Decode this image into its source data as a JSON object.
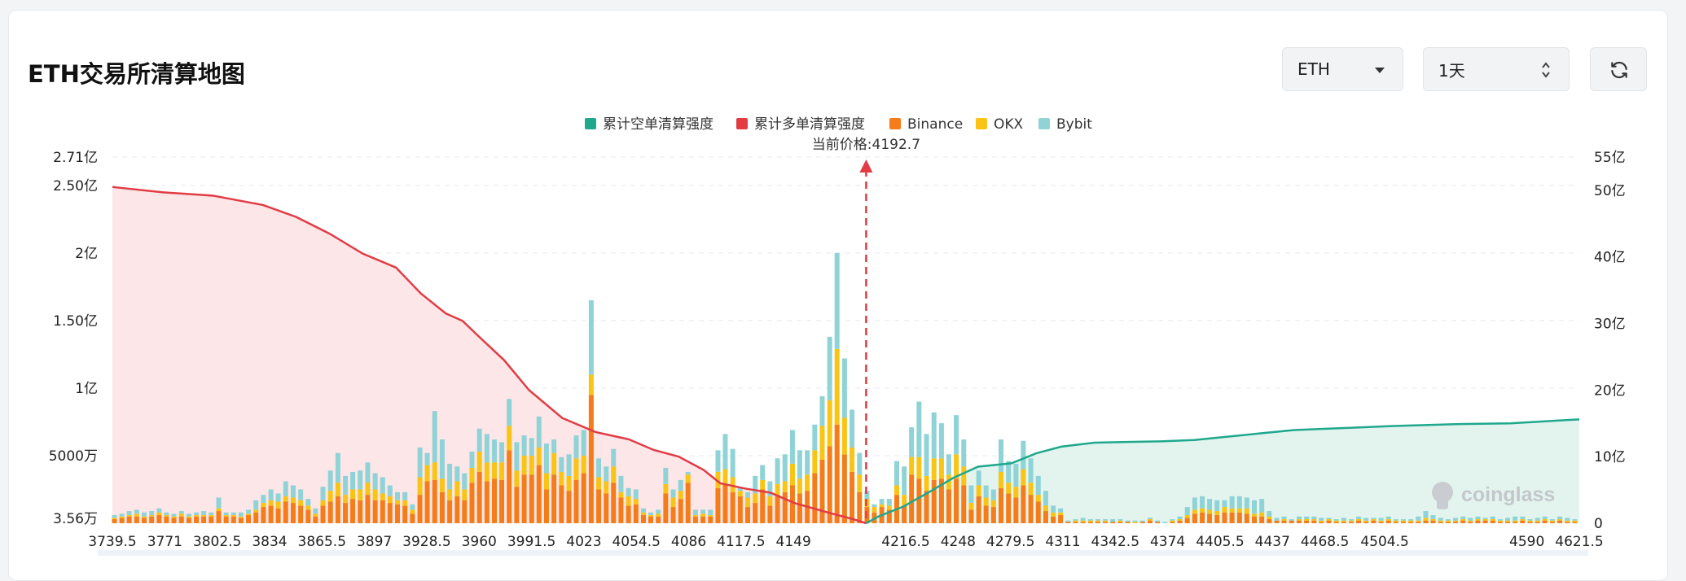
{
  "title": "ETH交易所清算地图",
  "controls": {
    "coin": "ETH",
    "period": "1天",
    "refresh_icon": "refresh-icon"
  },
  "watermark": "coinglass",
  "chart_data": {
    "type": "bar",
    "legend": [
      {
        "name": "累计空单清算强度",
        "color": "#1fa88c"
      },
      {
        "name": "累计多单清算强度",
        "color": "#e23b44"
      },
      {
        "name": "Binance",
        "color": "#f57c18"
      },
      {
        "name": "OKX",
        "color": "#f9c414"
      },
      {
        "name": "Bybit",
        "color": "#8fd3d6"
      }
    ],
    "legend_position": "top-center",
    "price_annotation": {
      "label": "当前价格:4192.7",
      "value": 4192.7
    },
    "x_tick_labels": [
      "3739.5",
      "3771",
      "3802.5",
      "3834",
      "3865.5",
      "3897",
      "3928.5",
      "3960",
      "3991.5",
      "4023",
      "4054.5",
      "4086",
      "4117.5",
      "4149",
      "4216.5",
      "4248",
      "4279.5",
      "4311",
      "4342.5",
      "4374",
      "4405.5",
      "4437",
      "4468.5",
      "4504.5",
      "4590",
      "4621.5"
    ],
    "x_range": [
      3739.5,
      4621.5
    ],
    "left_axis": {
      "tick_labels": [
        "3.56万",
        "5000万",
        "1亿",
        "1.50亿",
        "2亿",
        "2.50亿",
        "2.71亿"
      ],
      "unit_values": [
        0.0356,
        0.5,
        1,
        1.5,
        2,
        2.5,
        2.71
      ],
      "unit": "亿"
    },
    "right_axis": {
      "tick_labels": [
        "0",
        "10亿",
        "20亿",
        "30亿",
        "40亿",
        "50亿",
        "55亿"
      ],
      "unit_values": [
        0,
        10,
        20,
        30,
        40,
        50,
        55
      ],
      "unit": "亿"
    },
    "grid": true,
    "bars": [
      [
        3740.7,
        0.03,
        0.01,
        0.02
      ],
      [
        3745.2,
        0.04,
        0.01,
        0.02
      ],
      [
        3749.6,
        0.05,
        0.01,
        0.03
      ],
      [
        3754.1,
        0.05,
        0.02,
        0.03
      ],
      [
        3758.6,
        0.04,
        0.01,
        0.03
      ],
      [
        3763.1,
        0.05,
        0.01,
        0.03
      ],
      [
        3767.6,
        0.06,
        0.02,
        0.03
      ],
      [
        3772.0,
        0.05,
        0.01,
        0.02
      ],
      [
        3776.5,
        0.04,
        0.01,
        0.02
      ],
      [
        3781.0,
        0.05,
        0.02,
        0.02
      ],
      [
        3785.5,
        0.04,
        0.01,
        0.02
      ],
      [
        3790.0,
        0.05,
        0.01,
        0.02
      ],
      [
        3794.4,
        0.05,
        0.01,
        0.03
      ],
      [
        3798.9,
        0.05,
        0.01,
        0.02
      ],
      [
        3803.4,
        0.09,
        0.02,
        0.08
      ],
      [
        3807.9,
        0.05,
        0.01,
        0.02
      ],
      [
        3812.4,
        0.05,
        0.01,
        0.02
      ],
      [
        3816.8,
        0.04,
        0.01,
        0.03
      ],
      [
        3821.3,
        0.06,
        0.01,
        0.03
      ],
      [
        3825.8,
        0.08,
        0.02,
        0.07
      ],
      [
        3830.3,
        0.12,
        0.03,
        0.06
      ],
      [
        3834.8,
        0.13,
        0.04,
        0.08
      ],
      [
        3839.2,
        0.11,
        0.05,
        0.06
      ],
      [
        3843.7,
        0.16,
        0.04,
        0.11
      ],
      [
        3848.2,
        0.15,
        0.04,
        0.09
      ],
      [
        3852.7,
        0.13,
        0.04,
        0.08
      ],
      [
        3857.2,
        0.1,
        0.03,
        0.05
      ],
      [
        3861.6,
        0.05,
        0.02,
        0.04
      ],
      [
        3866.1,
        0.13,
        0.04,
        0.1
      ],
      [
        3870.6,
        0.16,
        0.08,
        0.15
      ],
      [
        3875.1,
        0.2,
        0.1,
        0.22
      ],
      [
        3879.6,
        0.15,
        0.06,
        0.14
      ],
      [
        3884.0,
        0.18,
        0.07,
        0.13
      ],
      [
        3888.5,
        0.17,
        0.08,
        0.14
      ],
      [
        3893.0,
        0.21,
        0.09,
        0.15
      ],
      [
        3897.5,
        0.17,
        0.08,
        0.12
      ],
      [
        3902.0,
        0.17,
        0.05,
        0.12
      ],
      [
        3906.4,
        0.15,
        0.05,
        0.08
      ],
      [
        3910.9,
        0.14,
        0.03,
        0.06
      ],
      [
        3915.4,
        0.13,
        0.04,
        0.06
      ],
      [
        3919.9,
        0.07,
        0.03,
        0.04
      ],
      [
        3924.4,
        0.21,
        0.13,
        0.22
      ],
      [
        3928.8,
        0.31,
        0.12,
        0.09
      ],
      [
        3933.3,
        0.32,
        0.13,
        0.38
      ],
      [
        3937.8,
        0.23,
        0.1,
        0.29
      ],
      [
        3942.3,
        0.17,
        0.08,
        0.19
      ],
      [
        3946.8,
        0.2,
        0.11,
        0.11
      ],
      [
        3951.2,
        0.17,
        0.08,
        0.12
      ],
      [
        3955.7,
        0.3,
        0.11,
        0.12
      ],
      [
        3960.2,
        0.38,
        0.15,
        0.17
      ],
      [
        3964.7,
        0.31,
        0.14,
        0.21
      ],
      [
        3969.2,
        0.33,
        0.12,
        0.17
      ],
      [
        3973.6,
        0.32,
        0.13,
        0.15
      ],
      [
        3978.1,
        0.54,
        0.18,
        0.2
      ],
      [
        3982.6,
        0.27,
        0.12,
        0.21
      ],
      [
        3987.1,
        0.36,
        0.14,
        0.15
      ],
      [
        3991.6,
        0.36,
        0.14,
        0.13
      ],
      [
        3996.0,
        0.43,
        0.13,
        0.23
      ],
      [
        4000.5,
        0.25,
        0.12,
        0.22
      ],
      [
        4005.0,
        0.36,
        0.16,
        0.1
      ],
      [
        4009.5,
        0.28,
        0.1,
        0.11
      ],
      [
        4014.0,
        0.24,
        0.11,
        0.16
      ],
      [
        4018.4,
        0.32,
        0.16,
        0.17
      ],
      [
        4022.9,
        0.37,
        0.13,
        0.19
      ],
      [
        4027.4,
        0.95,
        0.15,
        0.55
      ],
      [
        4031.9,
        0.25,
        0.09,
        0.14
      ],
      [
        4036.4,
        0.22,
        0.09,
        0.11
      ],
      [
        4040.8,
        0.3,
        0.12,
        0.13
      ],
      [
        4045.3,
        0.19,
        0.04,
        0.12
      ],
      [
        4049.8,
        0.13,
        0.07,
        0.06
      ],
      [
        4054.3,
        0.14,
        0.04,
        0.07
      ],
      [
        4058.8,
        0.06,
        0.02,
        0.03
      ],
      [
        4063.2,
        0.05,
        0.01,
        0.02
      ],
      [
        4067.7,
        0.05,
        0.02,
        0.03
      ],
      [
        4072.2,
        0.22,
        0.07,
        0.12
      ],
      [
        4076.7,
        0.12,
        0.07,
        0.06
      ],
      [
        4081.2,
        0.18,
        0.06,
        0.08
      ],
      [
        4085.6,
        0.3,
        0.06,
        0.02
      ],
      [
        4090.1,
        0.05,
        0.01,
        0.04
      ],
      [
        4094.6,
        0.05,
        0.02,
        0.03
      ],
      [
        4099.1,
        0.05,
        0.01,
        0.04
      ],
      [
        4103.6,
        0.26,
        0.12,
        0.16
      ],
      [
        4108.0,
        0.29,
        0.11,
        0.26
      ],
      [
        4112.5,
        0.23,
        0.11,
        0.21
      ],
      [
        4117.0,
        0.2,
        0.04,
        0.03
      ],
      [
        4121.5,
        0.12,
        0.07,
        0.04
      ],
      [
        4126.0,
        0.15,
        0.07,
        0.13
      ],
      [
        4130.4,
        0.25,
        0.07,
        0.11
      ],
      [
        4134.9,
        0.13,
        0.07,
        0.11
      ],
      [
        4139.4,
        0.21,
        0.08,
        0.19
      ],
      [
        4143.9,
        0.23,
        0.08,
        0.2
      ],
      [
        4148.4,
        0.28,
        0.16,
        0.25
      ],
      [
        4152.8,
        0.22,
        0.11,
        0.21
      ],
      [
        4157.3,
        0.24,
        0.12,
        0.18
      ],
      [
        4161.8,
        0.37,
        0.17,
        0.19
      ],
      [
        4166.3,
        0.47,
        0.25,
        0.22
      ],
      [
        4170.8,
        0.57,
        0.34,
        0.47
      ],
      [
        4175.2,
        0.73,
        0.56,
        0.71
      ],
      [
        4179.7,
        0.51,
        0.27,
        0.44
      ],
      [
        4184.2,
        0.38,
        0.18,
        0.28
      ],
      [
        4188.7,
        0.23,
        0.13,
        0.16
      ],
      [
        4193.2,
        0.12,
        0.06,
        0.06
      ],
      [
        4197.6,
        0.08,
        0.04,
        0.02
      ],
      [
        4202.1,
        0.12,
        0.02,
        0.04
      ],
      [
        4206.6,
        0.1,
        0.03,
        0.05
      ],
      [
        4211.1,
        0.21,
        0.07,
        0.18
      ],
      [
        4215.6,
        0.13,
        0.08,
        0.21
      ],
      [
        4220.0,
        0.36,
        0.13,
        0.22
      ],
      [
        4224.5,
        0.33,
        0.16,
        0.41
      ],
      [
        4229.0,
        0.24,
        0.11,
        0.31
      ],
      [
        4233.5,
        0.32,
        0.16,
        0.34
      ],
      [
        4238.0,
        0.33,
        0.15,
        0.26
      ],
      [
        4242.4,
        0.25,
        0.11,
        0.15
      ],
      [
        4246.9,
        0.33,
        0.18,
        0.29
      ],
      [
        4251.4,
        0.28,
        0.14,
        0.2
      ],
      [
        4255.9,
        0.1,
        0.05,
        0.13
      ],
      [
        4260.4,
        0.2,
        0.08,
        0.11
      ],
      [
        4264.8,
        0.13,
        0.06,
        0.09
      ],
      [
        4269.3,
        0.12,
        0.05,
        0.08
      ],
      [
        4273.8,
        0.26,
        0.12,
        0.24
      ],
      [
        4278.3,
        0.22,
        0.08,
        0.16
      ],
      [
        4282.8,
        0.19,
        0.08,
        0.17
      ],
      [
        4287.2,
        0.28,
        0.12,
        0.21
      ],
      [
        4291.7,
        0.21,
        0.09,
        0.18
      ],
      [
        4296.2,
        0.16,
        0.05,
        0.14
      ],
      [
        4300.7,
        0.09,
        0.04,
        0.11
      ],
      [
        4305.2,
        0.05,
        0.03,
        0.05
      ],
      [
        4309.6,
        0.06,
        0.02,
        0.03
      ],
      [
        4314.1,
        0.01,
        0.0,
        0.01
      ],
      [
        4318.6,
        0.01,
        0.01,
        0.01
      ],
      [
        4323.1,
        0.01,
        0.01,
        0.02
      ],
      [
        4327.6,
        0.01,
        0.01,
        0.01
      ],
      [
        4332.0,
        0.01,
        0.01,
        0.01
      ],
      [
        4336.5,
        0.01,
        0.01,
        0.01
      ],
      [
        4341.0,
        0.01,
        0.0,
        0.02
      ],
      [
        4345.5,
        0.01,
        0.01,
        0.01
      ],
      [
        4350.0,
        0.01,
        0.0,
        0.01
      ],
      [
        4354.4,
        0.0,
        0.01,
        0.01
      ],
      [
        4358.9,
        0.01,
        0.0,
        0.01
      ],
      [
        4363.4,
        0.02,
        0.01,
        0.01
      ],
      [
        4367.9,
        0.01,
        0.0,
        0.01
      ],
      [
        4372.4,
        0.0,
        0.0,
        0.01
      ],
      [
        4376.8,
        0.01,
        0.01,
        0.01
      ],
      [
        4381.3,
        0.02,
        0.01,
        0.02
      ],
      [
        4385.8,
        0.04,
        0.02,
        0.06
      ],
      [
        4390.3,
        0.07,
        0.03,
        0.09
      ],
      [
        4394.8,
        0.08,
        0.03,
        0.09
      ],
      [
        4399.2,
        0.07,
        0.03,
        0.08
      ],
      [
        4403.7,
        0.06,
        0.03,
        0.08
      ],
      [
        4408.2,
        0.08,
        0.04,
        0.05
      ],
      [
        4412.7,
        0.08,
        0.03,
        0.09
      ],
      [
        4417.2,
        0.08,
        0.03,
        0.09
      ],
      [
        4421.6,
        0.07,
        0.04,
        0.08
      ],
      [
        4426.1,
        0.05,
        0.02,
        0.1
      ],
      [
        4430.6,
        0.05,
        0.03,
        0.1
      ],
      [
        4435.1,
        0.03,
        0.02,
        0.04
      ],
      [
        4439.6,
        0.02,
        0.0,
        0.02
      ],
      [
        4444.0,
        0.02,
        0.01,
        0.02
      ],
      [
        4448.5,
        0.02,
        0.0,
        0.01
      ],
      [
        4453.0,
        0.02,
        0.01,
        0.02
      ],
      [
        4457.5,
        0.02,
        0.01,
        0.02
      ],
      [
        4462.0,
        0.02,
        0.01,
        0.02
      ],
      [
        4466.4,
        0.01,
        0.01,
        0.02
      ],
      [
        4470.9,
        0.02,
        0.01,
        0.01
      ],
      [
        4475.4,
        0.01,
        0.01,
        0.01
      ],
      [
        4479.9,
        0.01,
        0.01,
        0.02
      ],
      [
        4484.4,
        0.01,
        0.01,
        0.01
      ],
      [
        4488.8,
        0.02,
        0.01,
        0.02
      ],
      [
        4493.3,
        0.01,
        0.01,
        0.02
      ],
      [
        4497.8,
        0.02,
        0.01,
        0.01
      ],
      [
        4502.3,
        0.01,
        0.01,
        0.02
      ],
      [
        4506.8,
        0.02,
        0.01,
        0.02
      ],
      [
        4511.2,
        0.01,
        0.01,
        0.01
      ],
      [
        4515.7,
        0.01,
        0.01,
        0.01
      ],
      [
        4520.2,
        0.01,
        0.01,
        0.01
      ],
      [
        4524.7,
        0.01,
        0.01,
        0.03
      ],
      [
        4529.2,
        0.02,
        0.02,
        0.05
      ],
      [
        4533.6,
        0.02,
        0.01,
        0.03
      ],
      [
        4538.1,
        0.01,
        0.01,
        0.02
      ],
      [
        4542.6,
        0.01,
        0.01,
        0.01
      ],
      [
        4547.1,
        0.01,
        0.01,
        0.02
      ],
      [
        4551.6,
        0.02,
        0.01,
        0.02
      ],
      [
        4556.0,
        0.01,
        0.01,
        0.02
      ],
      [
        4560.5,
        0.02,
        0.01,
        0.02
      ],
      [
        4565.0,
        0.02,
        0.01,
        0.01
      ],
      [
        4569.5,
        0.02,
        0.01,
        0.02
      ],
      [
        4574.0,
        0.01,
        0.01,
        0.01
      ],
      [
        4578.4,
        0.01,
        0.01,
        0.02
      ],
      [
        4582.9,
        0.01,
        0.01,
        0.03
      ],
      [
        4587.4,
        0.02,
        0.01,
        0.02
      ],
      [
        4591.9,
        0.01,
        0.01,
        0.01
      ],
      [
        4596.4,
        0.01,
        0.01,
        0.02
      ],
      [
        4600.8,
        0.02,
        0.01,
        0.02
      ],
      [
        4605.3,
        0.01,
        0.01,
        0.01
      ],
      [
        4609.8,
        0.02,
        0.01,
        0.02
      ],
      [
        4614.3,
        0.01,
        0.01,
        0.02
      ],
      [
        4618.8,
        0.01,
        0.01,
        0.01
      ]
    ],
    "bar_fields": [
      "price",
      "Binance_亿",
      "OKX_亿",
      "Bybit_亿"
    ],
    "long_cumulative": [
      [
        3739.5,
        50.5
      ],
      [
        3770,
        49.7
      ],
      [
        3800,
        49.2
      ],
      [
        3830,
        47.8
      ],
      [
        3850,
        46.0
      ],
      [
        3870,
        43.5
      ],
      [
        3890,
        40.5
      ],
      [
        3910,
        38.4
      ],
      [
        3925,
        34.5
      ],
      [
        3940,
        31.5
      ],
      [
        3950,
        30.4
      ],
      [
        3960,
        28.0
      ],
      [
        3975,
        24.5
      ],
      [
        3990,
        20.0
      ],
      [
        4010,
        15.8
      ],
      [
        4030,
        13.7
      ],
      [
        4050,
        12.6
      ],
      [
        4065,
        11.0
      ],
      [
        4080,
        10.0
      ],
      [
        4095,
        8.0
      ],
      [
        4105,
        6.0
      ],
      [
        4120,
        5.2
      ],
      [
        4135,
        4.6
      ],
      [
        4150,
        3.0
      ],
      [
        4170,
        1.6
      ],
      [
        4185,
        0.6
      ],
      [
        4192.7,
        0
      ]
    ],
    "short_cumulative": [
      [
        4192.7,
        0
      ],
      [
        4200,
        1.0
      ],
      [
        4215,
        2.5
      ],
      [
        4230,
        4.6
      ],
      [
        4245,
        6.8
      ],
      [
        4260,
        8.5
      ],
      [
        4280,
        9.0
      ],
      [
        4295,
        10.5
      ],
      [
        4310,
        11.5
      ],
      [
        4330,
        12.1
      ],
      [
        4350,
        12.2
      ],
      [
        4370,
        12.3
      ],
      [
        4390,
        12.5
      ],
      [
        4410,
        13.0
      ],
      [
        4430,
        13.5
      ],
      [
        4450,
        14.0
      ],
      [
        4480,
        14.3
      ],
      [
        4510,
        14.6
      ],
      [
        4550,
        14.9
      ],
      [
        4580,
        15.0
      ],
      [
        4600,
        15.3
      ],
      [
        4621.5,
        15.6
      ]
    ]
  }
}
